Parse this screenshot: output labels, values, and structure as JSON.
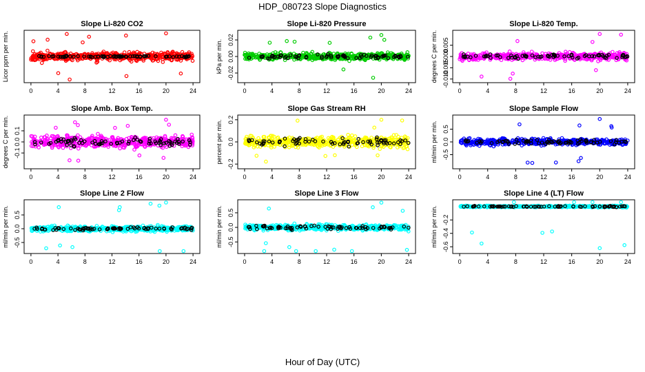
{
  "page": {
    "title": "HDP_080723  Slope Diagnostics",
    "xlabel": "Hour of Day (UTC)"
  },
  "colors": {
    "red": "#ff0000",
    "green": "#00cc00",
    "magenta": "#ff00ff",
    "yellow": "#ffff00",
    "blue": "#0000ff",
    "cyan": "#00ffff",
    "black": "#000000"
  },
  "chart_data": [
    {
      "type": "scatter",
      "title": "Slope Li-820 CO2",
      "ylabel": "Licor ppm per min.",
      "xlim": [
        -0.5,
        24.5
      ],
      "xticks": [
        0,
        4,
        8,
        12,
        16,
        20,
        24
      ],
      "ylim": [
        -3,
        3
      ],
      "yticks": [],
      "color_key": "red",
      "spread": 0.9,
      "outlier": 2.8,
      "black_spread": 0.15,
      "seed": 11
    },
    {
      "type": "scatter",
      "title": "Slope Li-820 Pressure",
      "ylabel": "kPa per min.",
      "xlim": [
        -0.5,
        24.5
      ],
      "xticks": [
        0,
        4,
        8,
        12,
        16,
        20,
        24
      ],
      "ylim": [
        -0.03,
        0.03
      ],
      "yticks": [
        -0.02,
        0.0,
        0.02
      ],
      "tick_format": 2,
      "color_key": "green",
      "spread": 0.007,
      "outlier": 0.026,
      "black_spread": 0.004,
      "seed": 23
    },
    {
      "type": "scatter",
      "title": "Slope Li-820 Temp.",
      "ylabel": "degrees C per min.",
      "xlim": [
        -0.5,
        24.5
      ],
      "xticks": [
        0,
        4,
        8,
        12,
        16,
        20,
        24
      ],
      "ylim": [
        -0.011,
        0.011
      ],
      "yticks": [
        -0.01,
        -0.005,
        0.0,
        0.005
      ],
      "tick_format": 3,
      "color_key": "magenta",
      "spread": 0.0028,
      "outlier": 0.01,
      "black_spread": 0.0015,
      "seed": 37
    },
    {
      "type": "scatter",
      "title": "Slope Amb. Box Temp.",
      "ylabel": "degrees C per min.",
      "xlim": [
        -0.5,
        24.5
      ],
      "xticks": [
        0,
        4,
        8,
        12,
        16,
        20,
        24
      ],
      "ylim": [
        -0.23,
        0.23
      ],
      "yticks": [
        -0.1,
        0.0,
        0.1
      ],
      "tick_format": 1,
      "color_key": "magenta",
      "spread": 0.09,
      "outlier": 0.2,
      "black_spread": 0.06,
      "seed": 41
    },
    {
      "type": "scatter",
      "title": "Slope Gas Stream RH",
      "ylabel": "percent per min.",
      "xlim": [
        -0.5,
        24.5
      ],
      "xticks": [
        0,
        4,
        8,
        12,
        16,
        20,
        24
      ],
      "ylim": [
        -0.23,
        0.23
      ],
      "yticks": [
        -0.2,
        0.0,
        0.2
      ],
      "tick_format": 1,
      "color_key": "yellow",
      "spread": 0.085,
      "outlier": 0.2,
      "black_spread": 0.06,
      "seed": 53
    },
    {
      "type": "scatter",
      "title": "Slope Sample Flow",
      "ylabel": "ml/min per min.",
      "xlim": [
        -0.5,
        24.5
      ],
      "xticks": [
        0,
        4,
        8,
        12,
        16,
        20,
        24
      ],
      "ylim": [
        -1.0,
        1.0
      ],
      "yticks": [
        -0.5,
        0.0,
        0.5
      ],
      "tick_format": 1,
      "color_key": "blue",
      "spread": 0.2,
      "outlier": 0.9,
      "black_spread": 0.15,
      "seed": 67
    },
    {
      "type": "scatter",
      "title": "Slope Line 2 Flow",
      "ylabel": "ml/min per min.",
      "xlim": [
        -0.5,
        24.5
      ],
      "xticks": [
        0,
        4,
        8,
        12,
        16,
        20,
        24
      ],
      "ylim": [
        -0.85,
        1.0
      ],
      "yticks": [
        -0.5,
        0.0,
        0.5
      ],
      "tick_format": 1,
      "color_key": "cyan",
      "spread": 0.15,
      "outlier": 0.95,
      "black_spread": 0.1,
      "seed": 71
    },
    {
      "type": "scatter",
      "title": "Slope Line 3 Flow",
      "ylabel": "ml/min per min.",
      "xlim": [
        -0.5,
        24.5
      ],
      "xticks": [
        0,
        4,
        8,
        12,
        16,
        20,
        24
      ],
      "ylim": [
        -0.85,
        0.9
      ],
      "yticks": [
        -0.5,
        0.0,
        0.5
      ],
      "tick_format": 1,
      "color_key": "cyan",
      "spread": 0.16,
      "outlier": 0.85,
      "black_spread": 0.12,
      "seed": 83
    },
    {
      "type": "scatter",
      "title": "Slope Line 4 (LT) Flow",
      "ylabel": "ml/min per min.",
      "xlim": [
        -0.5,
        24.5
      ],
      "xticks": [
        0,
        4,
        8,
        12,
        16,
        20,
        24
      ],
      "ylim": [
        -0.68,
        0.08
      ],
      "yticks": [
        -0.6,
        -0.4,
        -0.2
      ],
      "tick_format": 1,
      "color_key": "cyan",
      "spread": 0.02,
      "outlier": -0.62,
      "black_spread": 0.015,
      "seed": 97
    }
  ]
}
